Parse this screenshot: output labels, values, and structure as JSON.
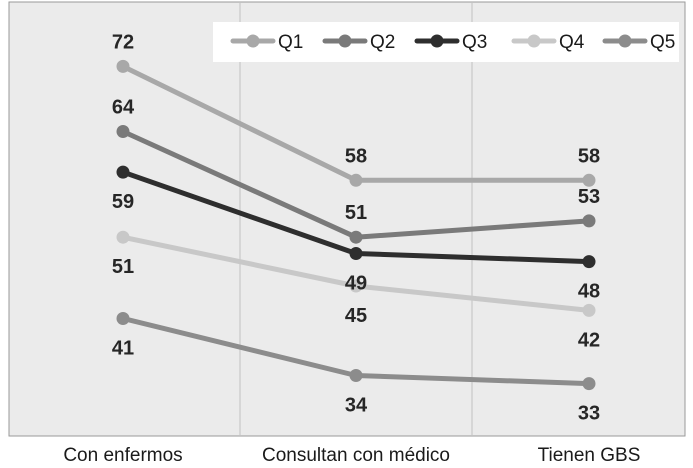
{
  "chart_data": {
    "type": "line",
    "categories": [
      "Con enfermos",
      "Consultan con médico",
      "Tienen GBS"
    ],
    "series": [
      {
        "name": "Q1",
        "values": [
          72,
          58,
          58
        ],
        "color": "#a8a8a8"
      },
      {
        "name": "Q2",
        "values": [
          64,
          51,
          53
        ],
        "color": "#7a7a7a"
      },
      {
        "name": "Q3",
        "values": [
          59,
          49,
          48
        ],
        "color": "#2e2e2e"
      },
      {
        "name": "Q4",
        "values": [
          51,
          45,
          42
        ],
        "color": "#c8c8c8"
      },
      {
        "name": "Q5",
        "values": [
          41,
          34,
          33
        ],
        "color": "#8c8c8c"
      }
    ],
    "title": "",
    "xlabel": "",
    "ylabel": "",
    "ylim": [
      30,
      75
    ],
    "grid": false,
    "legend_position": "top-right",
    "data_labels": true,
    "background_color": "#ebebeb"
  }
}
